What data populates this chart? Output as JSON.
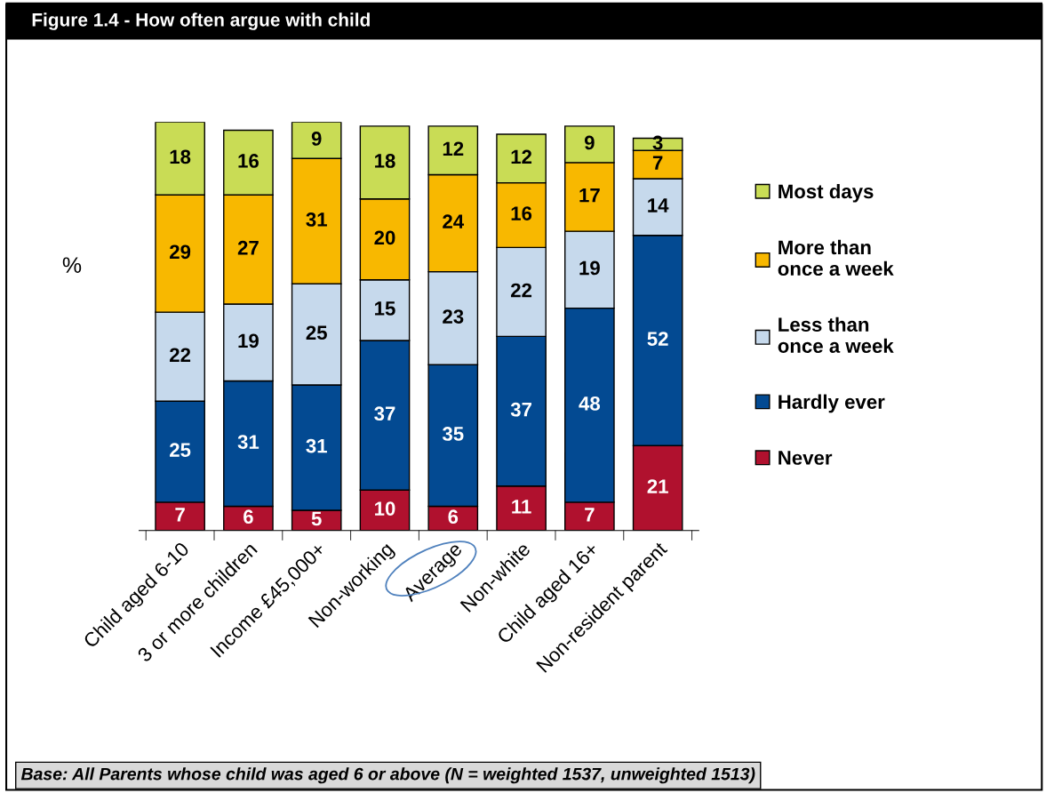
{
  "chart_data": {
    "type": "bar",
    "stacked": true,
    "title": "Figure 1.4 - How often argue with child",
    "ylabel": "%",
    "categories": [
      "Child aged 6-10",
      "3 or more children",
      "Income £45,000+",
      "Non-working",
      "Average",
      "Non-white",
      "Child aged 16+",
      "Non-resident parent"
    ],
    "series": [
      {
        "name": "Never",
        "color": "#b0112e",
        "values": [
          7,
          6,
          5,
          10,
          6,
          11,
          7,
          21
        ]
      },
      {
        "name": "Hardly ever",
        "color": "#034a92",
        "values": [
          25,
          31,
          31,
          37,
          35,
          37,
          48,
          52
        ]
      },
      {
        "name": "Less than\nonce a week",
        "color": "#c6d9ec",
        "values": [
          22,
          19,
          25,
          15,
          23,
          22,
          19,
          14
        ]
      },
      {
        "name": "More than\nonce a week",
        "color": "#f8b800",
        "values": [
          29,
          27,
          31,
          20,
          24,
          16,
          17,
          7
        ]
      },
      {
        "name": "Most days",
        "color": "#c9dc55",
        "values": [
          18,
          16,
          9,
          18,
          12,
          12,
          9,
          3
        ]
      }
    ],
    "data_labels": true,
    "legend": "right",
    "grid": false,
    "tick_labels": "x",
    "annotations": [
      "Base: All Parents whose child was aged 6 or above (N = weighted 1537, unweighted 1513)"
    ]
  }
}
